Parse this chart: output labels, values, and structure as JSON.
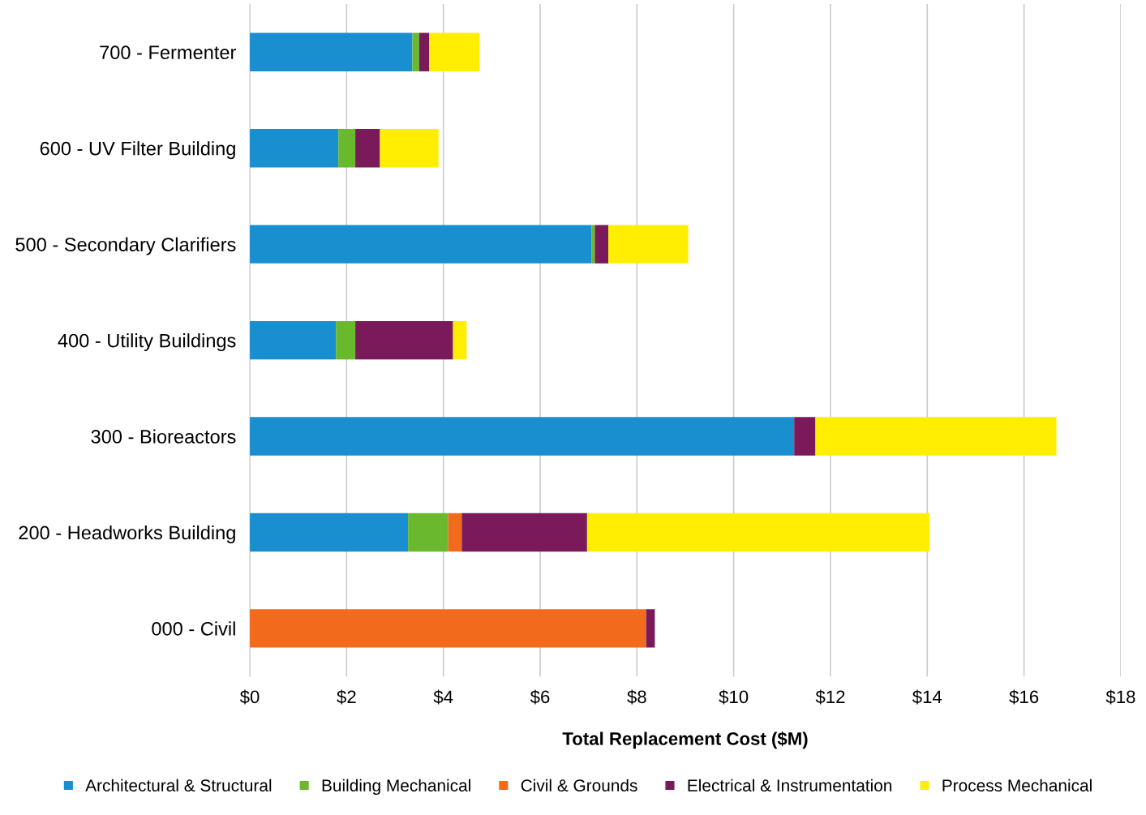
{
  "chart_data": {
    "type": "bar",
    "orientation": "horizontal",
    "stacked": true,
    "xlabel": "Total Replacement Cost ($M)",
    "categories": [
      "700 - Fermenter",
      "600 - UV Filter Building",
      "500 - Secondary Clarifiers",
      "400 - Utility Buildings",
      "300 - Bioreactors",
      "200 - Headworks Building",
      "000 - Civil"
    ],
    "series": [
      {
        "name": "Architectural & Structural",
        "color": "#1a8fd0",
        "values": [
          3.36,
          1.83,
          7.06,
          1.78,
          11.25,
          3.27,
          null
        ]
      },
      {
        "name": "Building Mechanical",
        "color": "#6ab82d",
        "values": [
          0.14,
          0.35,
          0.07,
          0.4,
          null,
          0.83,
          null
        ]
      },
      {
        "name": "Civil & Grounds",
        "color": "#f26b1d",
        "values": [
          null,
          null,
          null,
          null,
          null,
          0.28,
          8.19
        ]
      },
      {
        "name": "Electrical & Instrumentation",
        "color": "#7b1a5a",
        "values": [
          0.21,
          0.51,
          0.28,
          2.02,
          0.44,
          2.59,
          0.18
        ]
      },
      {
        "name": "Process Mechanical",
        "color": "#ffee00",
        "values": [
          1.04,
          1.21,
          1.65,
          0.28,
          4.98,
          7.08,
          null
        ]
      }
    ],
    "xlim": [
      0,
      18
    ],
    "xticks": [
      {
        "value": 0,
        "label": "$0"
      },
      {
        "value": 2,
        "label": "$2"
      },
      {
        "value": 4,
        "label": "$4"
      },
      {
        "value": 6,
        "label": "$6"
      },
      {
        "value": 8,
        "label": "$8"
      },
      {
        "value": 10,
        "label": "$10"
      },
      {
        "value": 12,
        "label": "$12"
      },
      {
        "value": 14,
        "label": "$14"
      },
      {
        "value": 16,
        "label": "$16"
      },
      {
        "value": 18,
        "label": "$18"
      }
    ],
    "grid": "x",
    "legend": "bottom"
  }
}
